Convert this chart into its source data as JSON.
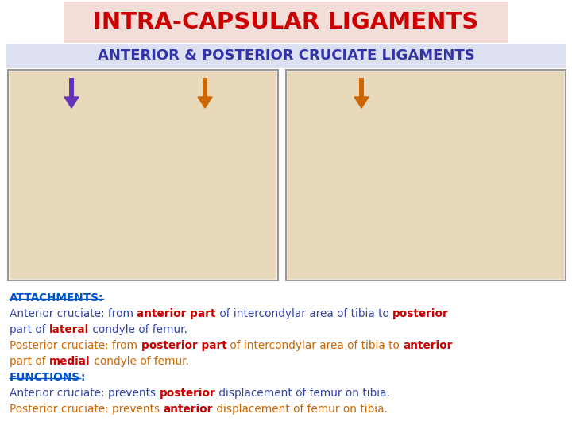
{
  "title": "INTRA-CAPSULAR LIGAMENTS",
  "title_color": "#cc0000",
  "title_bg": "#f2ddd8",
  "subtitle": "ANTERIOR & POSTERIOR CRUCIATE LIGAMENTS",
  "subtitle_color": "#3333aa",
  "subtitle_bg": "#dde0f0",
  "bg_color": "#ffffff",
  "box_bg": "#f0ebe0",
  "box_edge": "#999999",
  "arrow_left_color": "#6633bb",
  "arrow_right_color": "#cc6600",
  "text_lines": [
    [
      {
        "t": "ATTACHMENTS:",
        "c": "#0055cc",
        "b": true,
        "u": true
      }
    ],
    [
      {
        "t": "Anterior cruciate",
        "c": "#3344aa",
        "b": false
      },
      {
        "t": ": from ",
        "c": "#3344aa",
        "b": false
      },
      {
        "t": "anterior part",
        "c": "#cc0000",
        "b": true
      },
      {
        "t": " of intercondylar area of tibia to ",
        "c": "#3344aa",
        "b": false
      },
      {
        "t": "posterior",
        "c": "#cc0000",
        "b": true
      }
    ],
    [
      {
        "t": "part of ",
        "c": "#3344aa",
        "b": false
      },
      {
        "t": "lateral",
        "c": "#cc0000",
        "b": true
      },
      {
        "t": " condyle of femur.",
        "c": "#3344aa",
        "b": false
      }
    ],
    [
      {
        "t": "Posterior cruciate",
        "c": "#cc6600",
        "b": false
      },
      {
        "t": ": from ",
        "c": "#cc6600",
        "b": false
      },
      {
        "t": "posterior part",
        "c": "#cc0000",
        "b": true
      },
      {
        "t": " of intercondylar area of tibia to ",
        "c": "#cc6600",
        "b": false
      },
      {
        "t": "anterior",
        "c": "#cc0000",
        "b": true
      }
    ],
    [
      {
        "t": "part of ",
        "c": "#cc6600",
        "b": false
      },
      {
        "t": "medial",
        "c": "#cc0000",
        "b": true
      },
      {
        "t": " condyle of femur.",
        "c": "#cc6600",
        "b": false
      }
    ],
    [
      {
        "t": "FUNCTIONS",
        "c": "#0055cc",
        "b": true,
        "u": true
      },
      {
        "t": ":",
        "c": "#0055cc",
        "b": true
      }
    ],
    [
      {
        "t": "Anterior cruciate",
        "c": "#3344aa",
        "b": false
      },
      {
        "t": ": prevents ",
        "c": "#3344aa",
        "b": false
      },
      {
        "t": "posterior",
        "c": "#cc0000",
        "b": true
      },
      {
        "t": " displacement of femur on tibia.",
        "c": "#3344aa",
        "b": false
      }
    ],
    [
      {
        "t": "Posterior cruciate",
        "c": "#cc6600",
        "b": false
      },
      {
        "t": ": prevents ",
        "c": "#cc6600",
        "b": false
      },
      {
        "t": "anterior",
        "c": "#cc0000",
        "b": true
      },
      {
        "t": " displacement of femur on tibia.",
        "c": "#cc6600",
        "b": false
      }
    ]
  ]
}
